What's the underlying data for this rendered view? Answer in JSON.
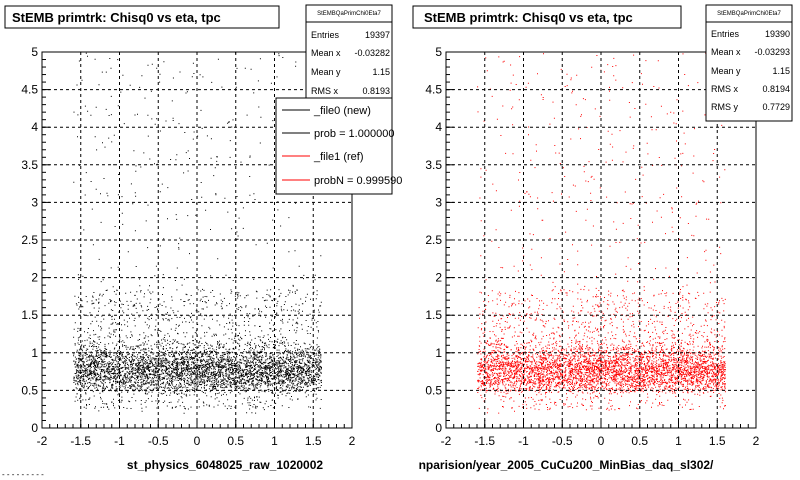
{
  "chart_data": [
    {
      "type": "scatter",
      "title": "StEMB primtrk: Chisq0 vs eta, tpc",
      "xlabel": "st_physics_6048025_raw_1020002",
      "xlim": [
        -2,
        2
      ],
      "ylim": [
        0,
        5
      ],
      "x_ticks": [
        "-2",
        "-1.5",
        "-1",
        "-0.5",
        "0",
        "0.5",
        "1",
        "1.5",
        "2"
      ],
      "y_ticks": [
        "0",
        "0.5",
        "1",
        "1.5",
        "2",
        "2.5",
        "3",
        "3.5",
        "4",
        "4.5",
        "5"
      ],
      "grid": true,
      "color": "#000000",
      "stats": {
        "name": "StEMBQaPrimChi0Eta7",
        "rows": [
          {
            "label": "Entries",
            "value": "19397"
          },
          {
            "label": "Mean x",
            "value": "-0.03282"
          },
          {
            "label": "Mean y",
            "value": "1.15"
          },
          {
            "label": "RMS x",
            "value": "0.8193"
          }
        ]
      },
      "legend": {
        "placement": "top-right",
        "entries": [
          {
            "label": "_file0 (new)",
            "color": "#000000"
          },
          {
            "label": "prob = 1.000000",
            "color": "#000000"
          },
          {
            "label": "_file1 (ref)",
            "color": "#ff0000"
          },
          {
            "label": "probN = 0.999590",
            "color": "#ff0000"
          }
        ]
      }
    },
    {
      "type": "scatter",
      "title": "StEMB primtrk: Chisq0 vs eta, tpc",
      "xlabel": "nparision/year_2005_CuCu200_MinBias_daq_sl302/",
      "xlim": [
        -2,
        2
      ],
      "ylim": [
        0,
        5
      ],
      "x_ticks": [
        "-2",
        "-1.5",
        "-1",
        "-0.5",
        "0",
        "0.5",
        "1",
        "1.5",
        "2"
      ],
      "y_ticks": [
        "0",
        "0.5",
        "1",
        "1.5",
        "2",
        "2.5",
        "3",
        "3.5",
        "4",
        "4.5",
        "5"
      ],
      "grid": true,
      "color": "#ff0000",
      "stats": {
        "name": "StEMBQaPrimChi0Eta7",
        "rows": [
          {
            "label": "Entries",
            "value": "19390"
          },
          {
            "label": "Mean x",
            "value": "-0.03293"
          },
          {
            "label": "Mean y",
            "value": "1.15"
          },
          {
            "label": "RMS x",
            "value": "0.8194"
          },
          {
            "label": "RMS y",
            "value": "0.7729"
          }
        ]
      }
    }
  ],
  "footer_text": "- - - - - - - - -"
}
